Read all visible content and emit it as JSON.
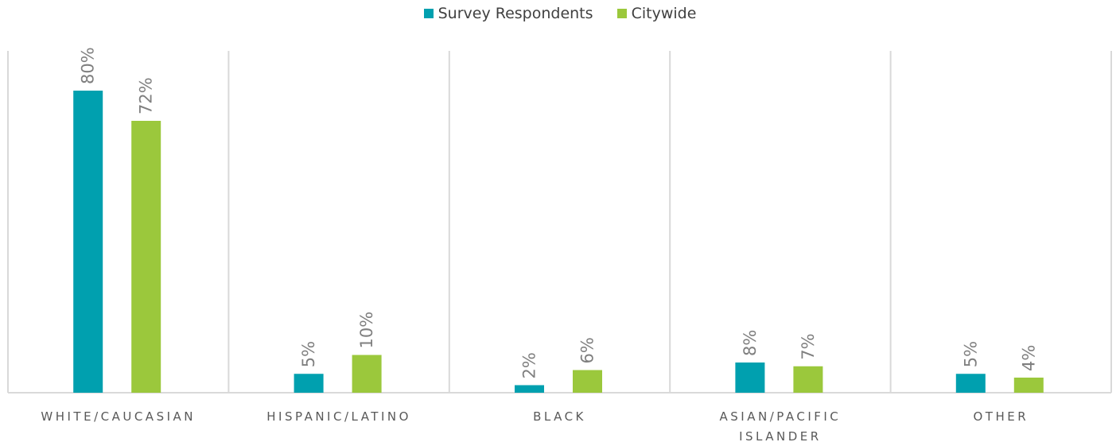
{
  "colors": {
    "series_1": "#00A0AF",
    "series_2": "#9BC83C",
    "grid": "#D9D9D9",
    "text": "#7F7F7F"
  },
  "legend": {
    "position": "top-center",
    "items": [
      "Survey Respondents",
      "Citywide"
    ]
  },
  "chart_data": {
    "type": "bar",
    "title": "",
    "xlabel": "",
    "ylabel": "",
    "ylim": [
      0,
      100
    ],
    "grid": false,
    "categories": [
      [
        "WHITE/CAUCASIAN"
      ],
      [
        "HISPANIC/LATINO"
      ],
      [
        "BLACK"
      ],
      [
        "ASIAN/PACIFIC",
        "ISLANDER"
      ],
      [
        "OTHER"
      ]
    ],
    "series": [
      {
        "name": "Survey Respondents",
        "values": [
          80,
          5,
          2,
          8,
          5
        ],
        "labels": [
          "80%",
          "5%",
          "2%",
          "8%",
          "5%"
        ]
      },
      {
        "name": "Citywide",
        "values": [
          72,
          10,
          6,
          7,
          4
        ],
        "labels": [
          "72%",
          "10%",
          "6%",
          "7%",
          "4%"
        ]
      }
    ]
  }
}
